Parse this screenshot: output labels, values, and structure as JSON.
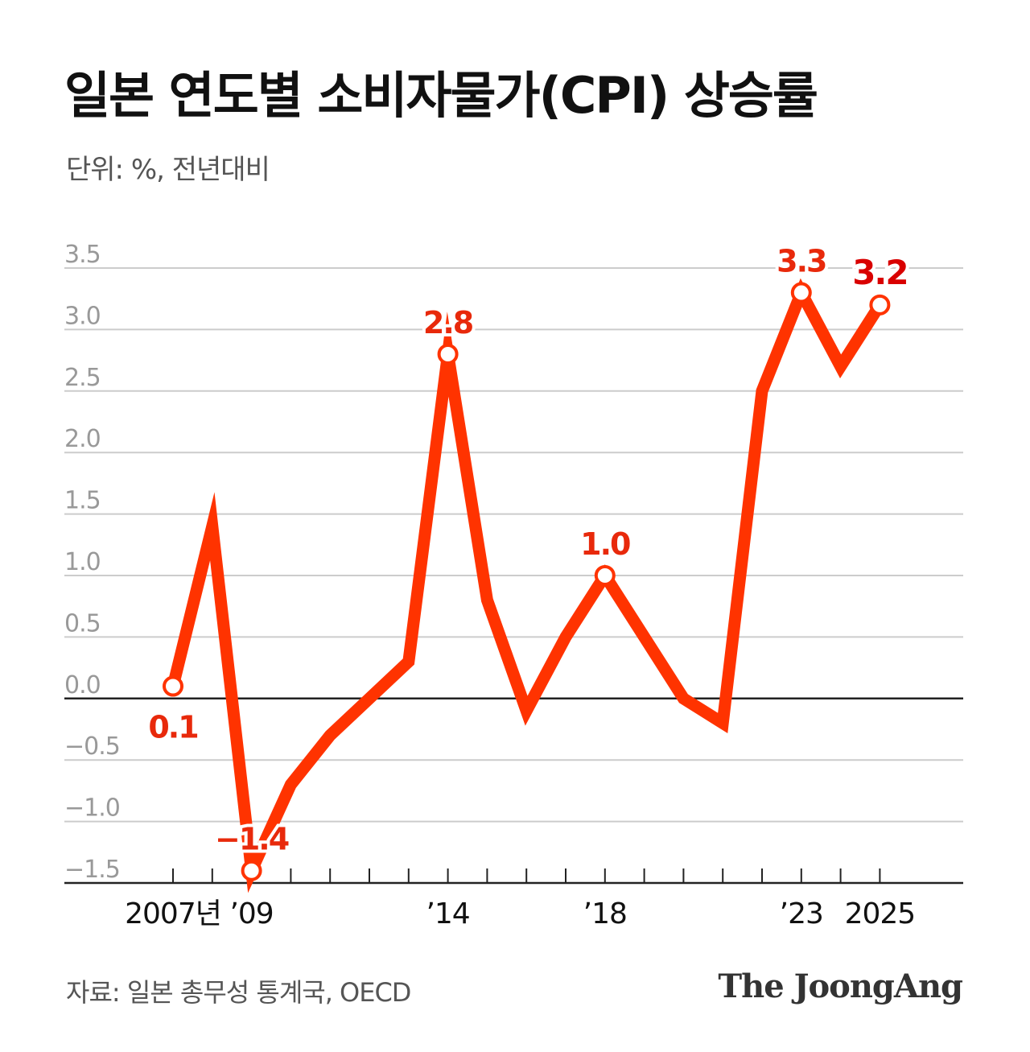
{
  "header": {
    "title": "일본 연도별 소비자물가(CPI) 상승률",
    "subtitle": "단위: %, 전년대비"
  },
  "footer": {
    "source": "자료: 일본 총무성 통계국, OECD",
    "brand": "The JoongAng"
  },
  "colors": {
    "line": "#ff3300",
    "label": "#e8290b",
    "label_last": "#d90000",
    "grid": "#cccccc",
    "zero_line": "#222222",
    "axis_text": "#999999"
  },
  "chart_data": {
    "type": "line",
    "title": "일본 연도별 소비자물가(CPI) 상승률",
    "ylabel": "단위: %, 전년대비",
    "ylim": [
      -1.5,
      3.5
    ],
    "yticks": [
      {
        "v": 3.5,
        "t": "3.5"
      },
      {
        "v": 3.0,
        "t": "3.0"
      },
      {
        "v": 2.5,
        "t": "2.5"
      },
      {
        "v": 2.0,
        "t": "2.0"
      },
      {
        "v": 1.5,
        "t": "1.5"
      },
      {
        "v": 1.0,
        "t": "1.0"
      },
      {
        "v": 0.5,
        "t": "0.5"
      },
      {
        "v": 0.0,
        "t": "0.0"
      },
      {
        "v": -0.5,
        "t": "−0.5"
      },
      {
        "v": -1.0,
        "t": "−1.0"
      },
      {
        "v": -1.5,
        "t": "−1.5"
      }
    ],
    "x": [
      2007,
      2008,
      2009,
      2010,
      2011,
      2012,
      2013,
      2014,
      2015,
      2016,
      2017,
      2018,
      2019,
      2020,
      2021,
      2022,
      2023,
      2024,
      2025
    ],
    "values": [
      0.1,
      1.4,
      -1.4,
      -0.7,
      -0.3,
      0.0,
      0.3,
      2.8,
      0.8,
      -0.1,
      0.5,
      1.0,
      0.5,
      0.0,
      -0.2,
      2.5,
      3.3,
      2.7,
      3.2
    ],
    "xtick_labels": [
      {
        "year": 2007,
        "text": "2007년"
      },
      {
        "year": 2009,
        "text": "’09"
      },
      {
        "year": 2014,
        "text": "’14"
      },
      {
        "year": 2018,
        "text": "’18"
      },
      {
        "year": 2023,
        "text": "’23"
      },
      {
        "year": 2025,
        "text": "2025"
      }
    ],
    "annotations": [
      {
        "year": 2007,
        "text": "0.1",
        "pos": "below"
      },
      {
        "year": 2009,
        "text": "−1.4",
        "pos": "above"
      },
      {
        "year": 2014,
        "text": "2.8",
        "pos": "above"
      },
      {
        "year": 2018,
        "text": "1.0",
        "pos": "above"
      },
      {
        "year": 2023,
        "text": "3.3",
        "pos": "above"
      },
      {
        "year": 2025,
        "text": "3.2",
        "pos": "above",
        "highlight": true
      }
    ],
    "grid": true
  }
}
